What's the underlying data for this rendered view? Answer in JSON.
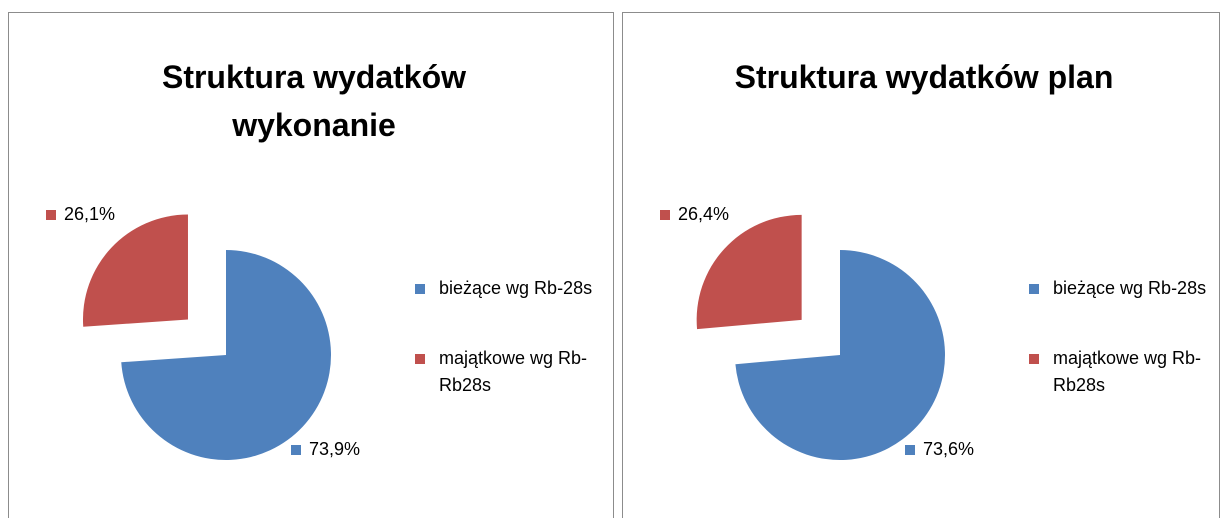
{
  "chart_data": [
    {
      "type": "pie",
      "title": "Struktura wydatków wykonanie",
      "categories": [
        "bieżące wg Rb-28s",
        "majątkowe wg Rb-Rb28s"
      ],
      "values": [
        73.9,
        26.1
      ],
      "value_labels": [
        "73,9%",
        "26,1%"
      ],
      "colors": [
        "#4f81bd",
        "#c0504d"
      ],
      "legend": "right"
    },
    {
      "type": "pie",
      "title": "Struktura wydatków plan",
      "categories": [
        "bieżące wg Rb-28s",
        "majątkowe wg Rb-Rb28s"
      ],
      "values": [
        73.6,
        26.4
      ],
      "value_labels": [
        "73,6%",
        "26,4%"
      ],
      "colors": [
        "#4f81bd",
        "#c0504d"
      ],
      "legend": "right"
    }
  ]
}
